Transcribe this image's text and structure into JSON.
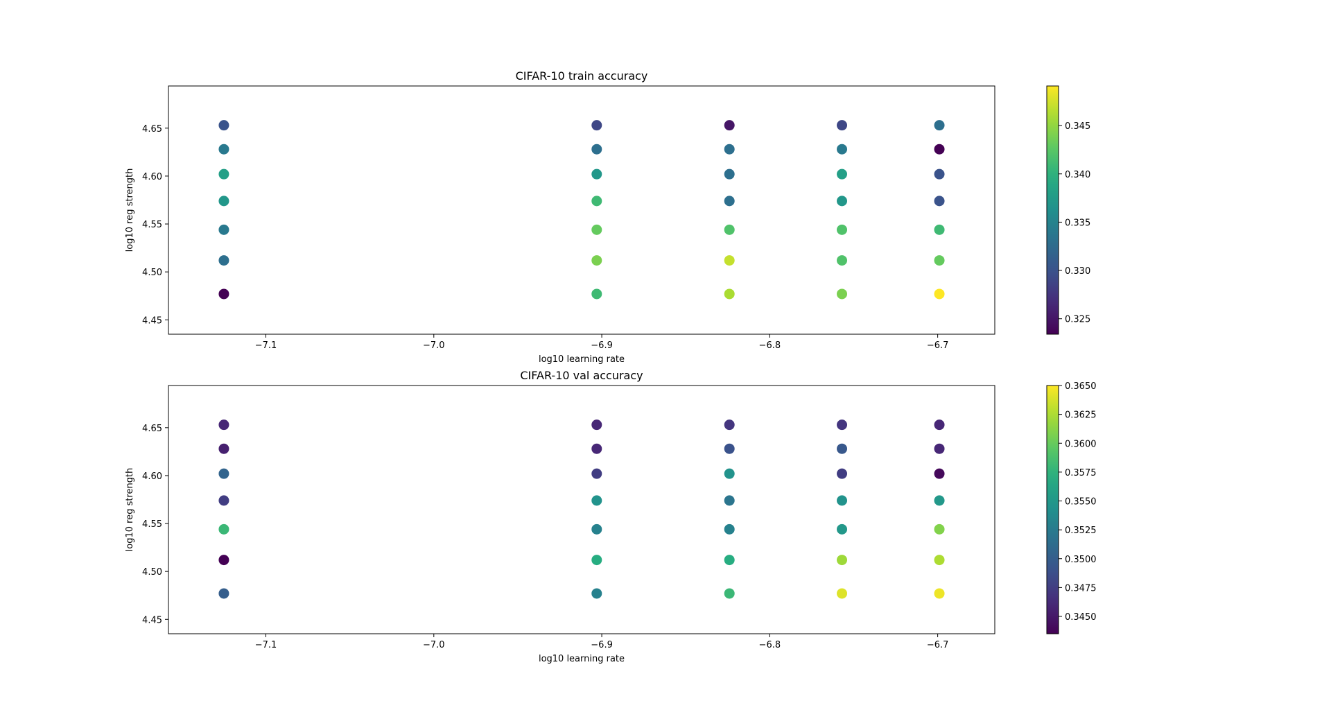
{
  "chart_data": [
    {
      "type": "scatter",
      "title": "CIFAR-10 train accuracy",
      "xlabel": "log10 learning rate",
      "ylabel": "log10 reg strength",
      "xlim": [
        -7.158,
        -6.666
      ],
      "ylim": [
        4.435,
        4.694
      ],
      "xticks": [
        -7.1,
        -7.0,
        -6.9,
        -6.8,
        -6.7
      ],
      "xtick_labels": [
        "−7.1",
        "−7.0",
        "−6.9",
        "−6.8",
        "−6.7"
      ],
      "yticks": [
        4.45,
        4.5,
        4.55,
        4.6,
        4.65
      ],
      "ytick_labels": [
        "4.45",
        "4.50",
        "4.55",
        "4.60",
        "4.65"
      ],
      "colormap": "viridis",
      "colorbar": {
        "min": 0.3234,
        "max": 0.3491,
        "ticks": [
          0.325,
          0.33,
          0.335,
          0.34,
          0.345
        ],
        "tick_labels": [
          "0.325",
          "0.330",
          "0.335",
          "0.340",
          "0.345"
        ]
      },
      "x": [
        -7.125,
        -6.903,
        -6.824,
        -6.757,
        -6.699
      ],
      "y": [
        4.477,
        4.512,
        4.544,
        4.574,
        4.602,
        4.628,
        4.653
      ],
      "values": [
        [
          0.3234,
          0.341,
          0.346,
          0.344,
          0.3491
        ],
        [
          0.333,
          0.344,
          0.347,
          0.342,
          0.343
        ],
        [
          0.334,
          0.343,
          0.342,
          0.342,
          0.341
        ],
        [
          0.337,
          0.341,
          0.333,
          0.337,
          0.33
        ],
        [
          0.338,
          0.337,
          0.333,
          0.338,
          0.33
        ],
        [
          0.334,
          0.333,
          0.333,
          0.334,
          0.3234
        ],
        [
          0.33,
          0.329,
          0.325,
          0.329,
          0.333
        ]
      ]
    },
    {
      "type": "scatter",
      "title": "CIFAR-10 val accuracy",
      "xlabel": "log10 learning rate",
      "ylabel": "log10 reg strength",
      "xlim": [
        -7.158,
        -6.666
      ],
      "ylim": [
        4.435,
        4.694
      ],
      "xticks": [
        -7.1,
        -7.0,
        -6.9,
        -6.8,
        -6.7
      ],
      "xtick_labels": [
        "−7.1",
        "−7.0",
        "−6.9",
        "−6.8",
        "−6.7"
      ],
      "yticks": [
        4.45,
        4.5,
        4.55,
        4.6,
        4.65
      ],
      "ytick_labels": [
        "4.45",
        "4.50",
        "4.55",
        "4.60",
        "4.65"
      ],
      "colormap": "viridis",
      "colorbar": {
        "min": 0.3435,
        "max": 0.365,
        "ticks": [
          0.345,
          0.3475,
          0.35,
          0.3525,
          0.355,
          0.3575,
          0.36,
          0.3625,
          0.365
        ],
        "tick_labels": [
          "0.3450",
          "0.3475",
          "0.3500",
          "0.3525",
          "0.3550",
          "0.3575",
          "0.3600",
          "0.3625",
          "0.3650"
        ]
      },
      "x": [
        -7.125,
        -6.903,
        -6.824,
        -6.757,
        -6.699
      ],
      "y": [
        4.477,
        4.512,
        4.544,
        4.574,
        4.602,
        4.628,
        4.653
      ],
      "values": [
        [
          0.35,
          0.353,
          0.358,
          0.364,
          0.3645
        ],
        [
          0.3435,
          0.357,
          0.357,
          0.362,
          0.3625
        ],
        [
          0.358,
          0.353,
          0.353,
          0.355,
          0.361
        ],
        [
          0.3475,
          0.3545,
          0.352,
          0.3545,
          0.355
        ],
        [
          0.3505,
          0.3475,
          0.3545,
          0.3475,
          0.344
        ],
        [
          0.3455,
          0.346,
          0.349,
          0.3495,
          0.346
        ],
        [
          0.346,
          0.346,
          0.347,
          0.347,
          0.346
        ]
      ]
    }
  ]
}
